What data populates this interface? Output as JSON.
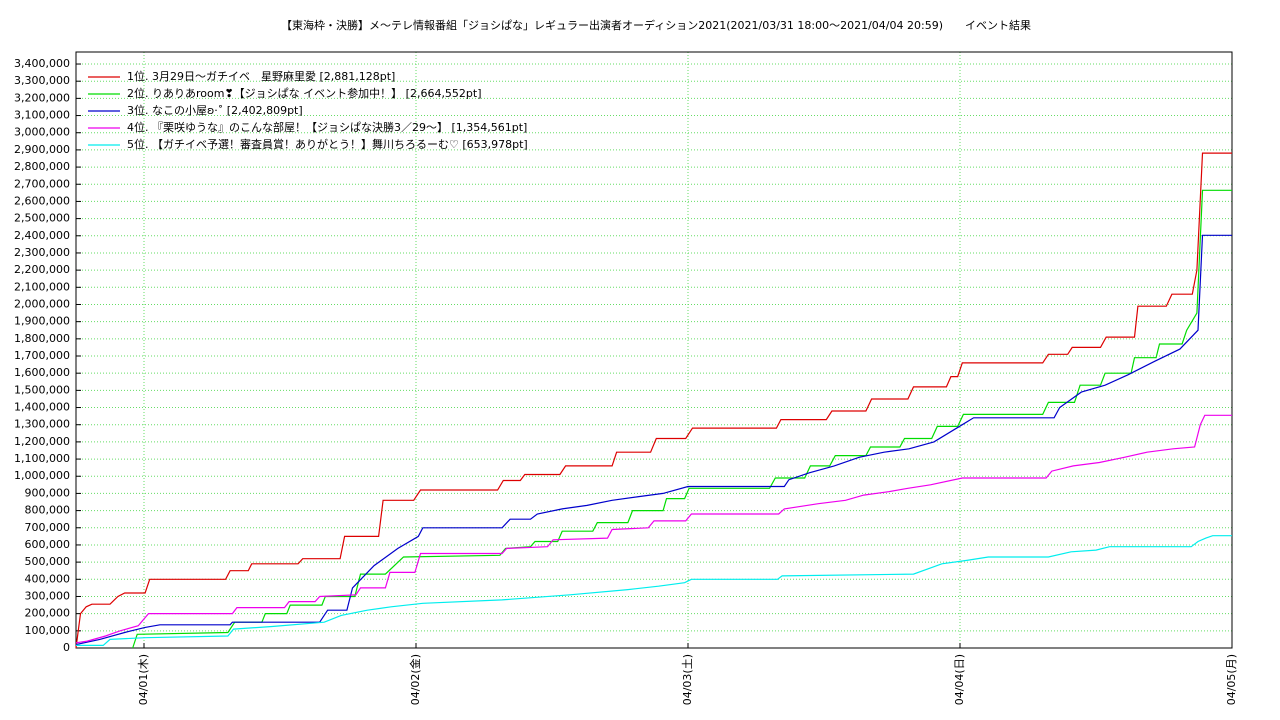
{
  "chart_data": {
    "type": "line",
    "title": "【東海枠・決勝】メ〜テレ情報番組「ジョシぱな」レギュラー出演者オーディション2021(2021/03/31 18:00〜2021/04/04 20:59)　　イベント結果",
    "xlim": [
      -6,
      96
    ],
    "xticks": [
      {
        "value": 0,
        "label": "04/01(木)"
      },
      {
        "value": 24,
        "label": "04/02(金)"
      },
      {
        "value": 48,
        "label": "04/03(土)"
      },
      {
        "value": 72,
        "label": "04/04(日)"
      },
      {
        "value": 96,
        "label": "04/05(月)"
      }
    ],
    "ylim": [
      0,
      3470000
    ],
    "yticks": [
      0,
      {
        "value": 100000,
        "label": "100,000"
      },
      {
        "value": 200000,
        "label": "200,000"
      },
      {
        "value": 300000,
        "label": "300,000"
      },
      {
        "value": 400000,
        "label": "400,000"
      },
      {
        "value": 500000,
        "label": "500,000"
      },
      {
        "value": 600000,
        "label": "600,000"
      },
      {
        "value": 700000,
        "label": "700,000"
      },
      {
        "value": 800000,
        "label": "800,000"
      },
      {
        "value": 900000,
        "label": "900,000"
      },
      {
        "value": 1000000,
        "label": "1,000,000"
      },
      {
        "value": 1100000,
        "label": "1,100,000"
      },
      {
        "value": 1200000,
        "label": "1,200,000"
      },
      {
        "value": 1300000,
        "label": "1,300,000"
      },
      {
        "value": 1400000,
        "label": "1,400,000"
      },
      {
        "value": 1500000,
        "label": "1,500,000"
      },
      {
        "value": 1600000,
        "label": "1,600,000"
      },
      {
        "value": 1700000,
        "label": "1,700,000"
      },
      {
        "value": 1800000,
        "label": "1,800,000"
      },
      {
        "value": 1900000,
        "label": "1,900,000"
      },
      {
        "value": 2000000,
        "label": "2,000,000"
      },
      {
        "value": 2100000,
        "label": "2,100,000"
      },
      {
        "value": 2200000,
        "label": "2,200,000"
      },
      {
        "value": 2300000,
        "label": "2,300,000"
      },
      {
        "value": 2400000,
        "label": "2,400,000"
      },
      {
        "value": 2500000,
        "label": "2,500,000"
      },
      {
        "value": 2600000,
        "label": "2,600,000"
      },
      {
        "value": 2700000,
        "label": "2,700,000"
      },
      {
        "value": 2800000,
        "label": "2,800,000"
      },
      {
        "value": 2900000,
        "label": "2,900,000"
      },
      {
        "value": 3000000,
        "label": "3,000,000"
      },
      {
        "value": 3100000,
        "label": "3,100,000"
      },
      {
        "value": 3200000,
        "label": "3,200,000"
      },
      {
        "value": 3300000,
        "label": "3,300,000"
      },
      {
        "value": 3400000,
        "label": "3,400,000"
      }
    ],
    "grid": true,
    "legend": "upper-left",
    "series": [
      {
        "name": "1位. 3月29日〜ガチイベ　星野麻里愛 [2,881,128pt]",
        "color": "#dd0000",
        "x": [
          -6,
          -5.6,
          -5.1,
          -4.6,
          -3,
          -2.3,
          -1.7,
          0.1,
          0.5,
          7.2,
          7.6,
          9.2,
          9.5,
          13.6,
          14,
          17.3,
          17.7,
          20.7,
          21.1,
          23.8,
          24.4,
          31.2,
          31.7,
          33.2,
          33.6,
          36.7,
          37.2,
          41.3,
          41.7,
          44.7,
          45.2,
          47.8,
          48.4,
          55.8,
          56.2,
          60.2,
          60.7,
          63.7,
          64.2,
          67.4,
          67.9,
          70.8,
          71.2,
          71.8,
          72.2,
          79.3,
          79.8,
          81.5,
          81.9,
          84.4,
          84.9,
          87.4,
          87.7,
          90.2,
          90.7,
          92.5,
          92.9,
          93.4,
          96
        ],
        "values": [
          0,
          200000,
          240000,
          255000,
          255000,
          300000,
          320000,
          320000,
          400000,
          400000,
          450000,
          450000,
          490000,
          490000,
          520000,
          520000,
          650000,
          650000,
          860000,
          860000,
          920000,
          920000,
          975000,
          975000,
          1010000,
          1010000,
          1060000,
          1060000,
          1140000,
          1140000,
          1220000,
          1220000,
          1280000,
          1280000,
          1330000,
          1330000,
          1380000,
          1380000,
          1450000,
          1450000,
          1520000,
          1520000,
          1580000,
          1580000,
          1660000,
          1660000,
          1710000,
          1710000,
          1750000,
          1750000,
          1810000,
          1810000,
          1990000,
          1990000,
          2060000,
          2060000,
          2200000,
          2881128,
          2881128
        ]
      },
      {
        "name": "2位. りありあroom❣【ジョシぱな イベント参加中！】 [2,664,552pt]",
        "color": "#00dd00",
        "x": [
          -1.0,
          -0.6,
          7.4,
          8.0,
          10.4,
          10.7,
          12.6,
          12.9,
          15.7,
          16.0,
          18.6,
          19.1,
          21.3,
          22.9,
          31.4,
          31.9,
          34.1,
          34.5,
          36.5,
          36.9,
          39.6,
          40.0,
          42.7,
          43.1,
          45.8,
          46.1,
          47.7,
          48.1,
          55.2,
          55.7,
          58.3,
          58.8,
          60.5,
          61.0,
          63.7,
          64.1,
          66.7,
          67.1,
          69.5,
          70.0,
          71.8,
          72.3,
          79.3,
          79.8,
          82.1,
          82.6,
          84.4,
          84.8,
          87.1,
          87.4,
          89.3,
          89.6,
          91.6,
          92.0,
          92.9,
          93.4,
          96
        ],
        "values": [
          0,
          80000,
          90000,
          150000,
          150000,
          200000,
          200000,
          250000,
          250000,
          300000,
          300000,
          430000,
          430000,
          530000,
          540000,
          580000,
          590000,
          620000,
          620000,
          680000,
          680000,
          730000,
          730000,
          800000,
          800000,
          870000,
          870000,
          930000,
          930000,
          990000,
          990000,
          1060000,
          1060000,
          1120000,
          1120000,
          1170000,
          1170000,
          1220000,
          1220000,
          1290000,
          1290000,
          1360000,
          1360000,
          1430000,
          1430000,
          1530000,
          1530000,
          1600000,
          1600000,
          1690000,
          1690000,
          1770000,
          1770000,
          1850000,
          1950000,
          2664552,
          2664552
        ]
      },
      {
        "name": "3位. なこの小屋ʚ·˚ [2,402,809pt]",
        "color": "#0000cc",
        "x": [
          -6,
          -3.9,
          -1.7,
          0.1,
          1.4,
          7.6,
          7.8,
          15.5,
          16.2,
          17.9,
          18.4,
          20.3,
          22.4,
          24.2,
          24.6,
          31.6,
          32.3,
          34.1,
          34.7,
          36.9,
          39.1,
          41.3,
          43.5,
          45.8,
          48.0,
          56.5,
          56.9,
          58.7,
          60.9,
          63.1,
          65.3,
          67.5,
          69.7,
          72.2,
          73.2,
          80.3,
          80.8,
          82.7,
          84.8,
          86.8,
          89.2,
          91.4,
          93.0,
          93.4,
          96
        ],
        "values": [
          20000,
          50000,
          90000,
          120000,
          135000,
          135000,
          150000,
          150000,
          220000,
          220000,
          350000,
          480000,
          580000,
          650000,
          700000,
          700000,
          750000,
          750000,
          780000,
          810000,
          830000,
          860000,
          880000,
          900000,
          940000,
          940000,
          980000,
          1020000,
          1060000,
          1110000,
          1140000,
          1160000,
          1200000,
          1300000,
          1340000,
          1340000,
          1400000,
          1490000,
          1530000,
          1590000,
          1670000,
          1740000,
          1850000,
          2402809,
          2402809
        ]
      },
      {
        "name": "4位. 『栗咲ゆうな』のこんな部屋！【ジョシぱな決勝3／29〜】 [1,354,561pt]",
        "color": "#ee00ee",
        "x": [
          -6,
          -5,
          -3.4,
          -2.1,
          -0.5,
          0.4,
          7.8,
          8.2,
          12.4,
          12.8,
          15.1,
          15.5,
          18.7,
          19.1,
          21.3,
          21.7,
          23.9,
          24.4,
          31.6,
          32.0,
          35.6,
          36.1,
          40.9,
          41.3,
          44.5,
          45.0,
          47.8,
          48.3,
          56.0,
          56.5,
          59.5,
          61.9,
          63.5,
          65.7,
          67.4,
          69.4,
          72.2,
          79.6,
          80.1,
          82.0,
          84.3,
          86.5,
          88.5,
          90.8,
          92.7,
          93.2,
          93.6,
          96
        ],
        "values": [
          30000,
          40000,
          70000,
          100000,
          130000,
          200000,
          200000,
          235000,
          235000,
          270000,
          270000,
          300000,
          310000,
          350000,
          350000,
          440000,
          440000,
          550000,
          550000,
          580000,
          590000,
          630000,
          640000,
          690000,
          700000,
          740000,
          740000,
          780000,
          780000,
          810000,
          840000,
          860000,
          890000,
          910000,
          930000,
          950000,
          990000,
          990000,
          1030000,
          1060000,
          1080000,
          1110000,
          1140000,
          1160000,
          1170000,
          1300000,
          1354561,
          1354561
        ]
      },
      {
        "name": "5位. 【ガチイベ予選！審査員賞！ありがとう！】舞川ちろるーむ♡ [653,978pt]",
        "color": "#00eeee",
        "x": [
          -6,
          -3.6,
          -3.0,
          0.1,
          7.4,
          7.9,
          11.3,
          15.9,
          17.4,
          19.7,
          21.8,
          24.6,
          31.6,
          37.6,
          42.7,
          45.4,
          47.7,
          48.3,
          55.9,
          56.3,
          67.9,
          70.4,
          72.6,
          74.5,
          79.8,
          81.8,
          84.0,
          85.2,
          92.4,
          93.0,
          93.7,
          94.3,
          96
        ],
        "values": [
          15000,
          15000,
          50000,
          60000,
          70000,
          110000,
          125000,
          150000,
          190000,
          220000,
          240000,
          260000,
          280000,
          310000,
          340000,
          360000,
          380000,
          400000,
          400000,
          420000,
          430000,
          490000,
          510000,
          530000,
          530000,
          560000,
          570000,
          590000,
          590000,
          620000,
          640000,
          653978,
          653978
        ]
      }
    ]
  }
}
